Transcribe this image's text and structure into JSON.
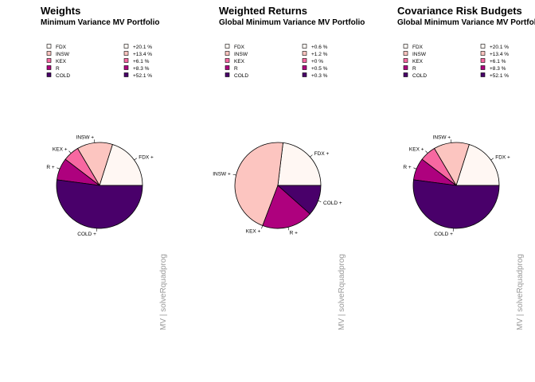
{
  "chart_data": [
    {
      "type": "pie",
      "title": "Weights",
      "subtitle": "Minimum Variance MV Portfolio",
      "categories": [
        "FDX",
        "INSW",
        "KEX",
        "R",
        "COLD"
      ],
      "values": [
        20.1,
        13.4,
        6.1,
        8.3,
        52.1
      ],
      "legend_labels": [
        "+20.1 %",
        "+13.4 %",
        "+6.1 %",
        "+8.3 %",
        "+52.1 %"
      ],
      "slice_labels": [
        "FDX +",
        "INSW +",
        "KEX +",
        "R +",
        "COLD +"
      ],
      "side_text": "MV | solveRquadprog",
      "legend": "top"
    },
    {
      "type": "pie",
      "title": "Weighted Returns",
      "subtitle": "Global Minimum Variance MV Portfolio",
      "categories": [
        "FDX",
        "INSW",
        "KEX",
        "R",
        "COLD"
      ],
      "values": [
        0.6,
        1.2,
        0.0,
        0.5,
        0.3
      ],
      "legend_labels": [
        "+0.6 %",
        "+1.2 %",
        "+0 %",
        "+0.5 %",
        "+0.3 %"
      ],
      "slice_labels": [
        "FDX +",
        "INSW +",
        "KEX +",
        "R +",
        "COLD +"
      ],
      "side_text": "MV | solveRquadprog",
      "legend": "top"
    },
    {
      "type": "pie",
      "title": "Covariance Risk Budgets",
      "subtitle": "Global Minimum Variance MV Portfolio",
      "categories": [
        "FDX",
        "INSW",
        "KEX",
        "R",
        "COLD"
      ],
      "values": [
        20.1,
        13.4,
        6.1,
        8.3,
        52.1
      ],
      "legend_labels": [
        "+20.1 %",
        "+13.4 %",
        "+6.1 %",
        "+8.3 %",
        "+52.1 %"
      ],
      "slice_labels": [
        "FDX +",
        "INSW +",
        "KEX +",
        "R +",
        "COLD +"
      ],
      "side_text": "MV | solveRquadprog",
      "legend": "top"
    }
  ],
  "colors": {
    "FDX": "#fff7f3",
    "INSW": "#fcc5c0",
    "KEX": "#f768a1",
    "R": "#ae017e",
    "COLD": "#49006a"
  }
}
